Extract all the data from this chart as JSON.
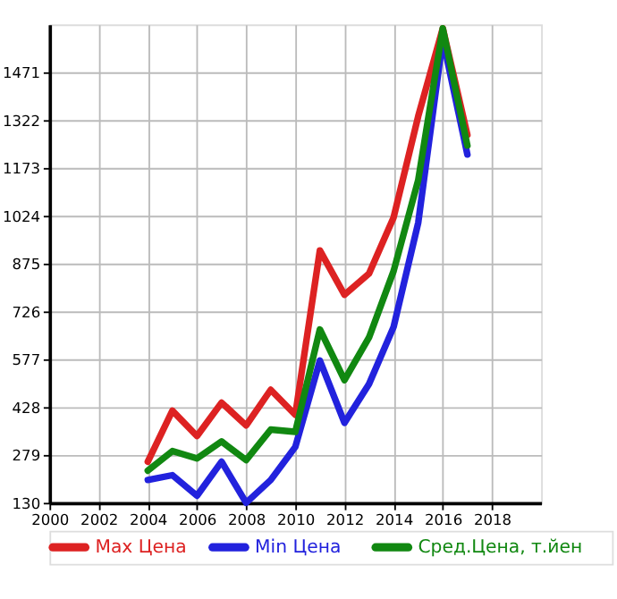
{
  "chart_data": {
    "type": "line",
    "x": [
      2004,
      2005,
      2006,
      2007,
      2008,
      2009,
      2010,
      2011,
      2012,
      2013,
      2014,
      2015,
      2016,
      2017
    ],
    "series": [
      {
        "name": "Max Цена",
        "color": "#dd2222",
        "values": [
          258,
          417,
          338,
          442,
          371,
          482,
          404,
          916,
          778,
          844,
          1019,
          1334,
          1608,
          1276
        ]
      },
      {
        "name": "Min Цена",
        "color": "#2222dd",
        "values": [
          201,
          216,
          152,
          258,
          130,
          201,
          304,
          573,
          379,
          500,
          678,
          1002,
          1575,
          1215
        ]
      },
      {
        "name": "Сред.Цена, т.йен",
        "color": "#118811",
        "values": [
          230,
          291,
          268,
          321,
          263,
          358,
          351,
          670,
          512,
          645,
          852,
          1135,
          1608,
          1243
        ]
      }
    ],
    "xlim": [
      2000,
      2020
    ],
    "xticks": [
      2000,
      2002,
      2004,
      2006,
      2008,
      2010,
      2012,
      2014,
      2016,
      2018
    ],
    "ylim": [
      130,
      1620
    ],
    "yticks": [
      130,
      279,
      428,
      577,
      726,
      875,
      1024,
      1173,
      1322,
      1471
    ],
    "grid": true,
    "legend": "bottom",
    "marker": "none",
    "line_style": "solid"
  }
}
